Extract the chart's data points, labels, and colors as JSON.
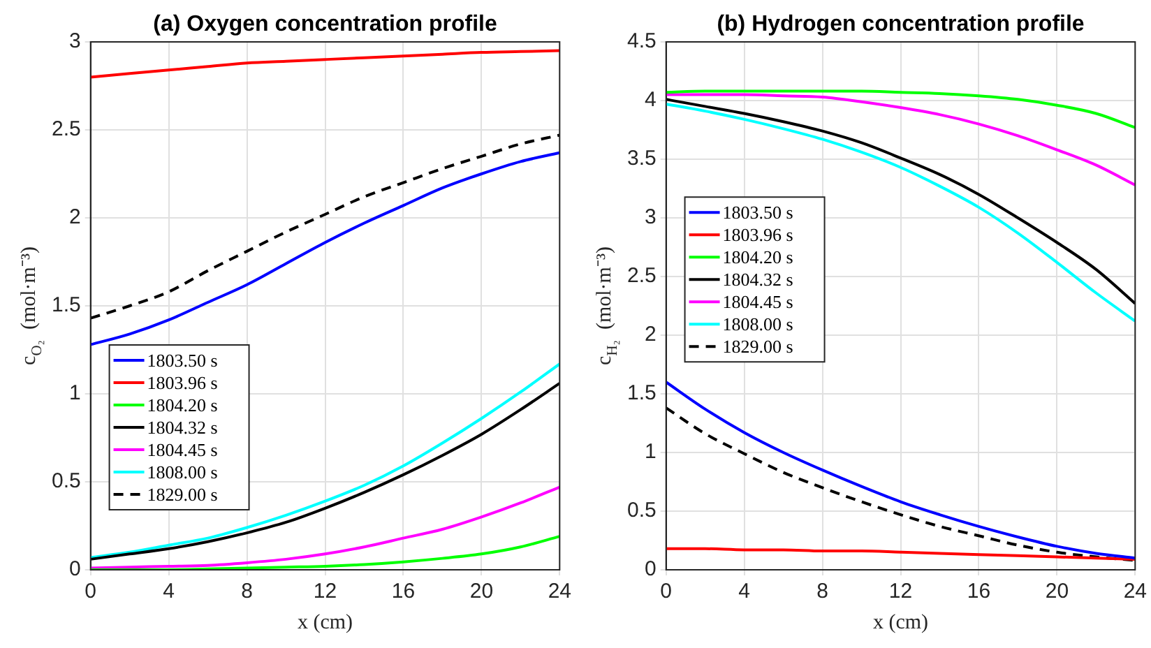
{
  "chart_data": [
    {
      "type": "line",
      "title": "(a) Oxygen concentration profile",
      "xlabel": "x (cm)",
      "ylabel": "c$_{O₂}$  (mol·m⁻³)",
      "x": [
        0,
        2,
        4,
        6,
        8,
        10,
        12,
        14,
        16,
        18,
        20,
        22,
        24
      ],
      "xlim": [
        0,
        24
      ],
      "xticks": [
        0,
        4,
        8,
        12,
        16,
        20,
        24
      ],
      "ylim": [
        0,
        3
      ],
      "yticks": [
        0,
        0.5,
        1,
        1.5,
        2,
        2.5,
        3
      ],
      "grid": true,
      "legend": "lower left",
      "marker": "none",
      "series": [
        {
          "name": "1803.50 s",
          "color": "#0000ff",
          "values": [
            1.28,
            1.34,
            1.42,
            1.52,
            1.62,
            1.74,
            1.86,
            1.97,
            2.07,
            2.17,
            2.25,
            2.32,
            2.37
          ]
        },
        {
          "name": "1803.96 s",
          "color": "#ff0000",
          "values": [
            2.8,
            2.82,
            2.84,
            2.86,
            2.88,
            2.89,
            2.9,
            2.91,
            2.92,
            2.93,
            2.94,
            2.945,
            2.95
          ]
        },
        {
          "name": "1804.20 s",
          "color": "#00ff00",
          "values": [
            0,
            0,
            0,
            0.005,
            0.01,
            0.015,
            0.02,
            0.03,
            0.045,
            0.065,
            0.09,
            0.13,
            0.19
          ]
        },
        {
          "name": "1804.32 s",
          "color": "#000000",
          "values": [
            0.06,
            0.09,
            0.12,
            0.16,
            0.21,
            0.27,
            0.35,
            0.44,
            0.54,
            0.65,
            0.77,
            0.91,
            1.06
          ]
        },
        {
          "name": "1804.45 s",
          "color": "#ff00ff",
          "values": [
            0.01,
            0.015,
            0.02,
            0.025,
            0.04,
            0.06,
            0.09,
            0.13,
            0.18,
            0.23,
            0.3,
            0.38,
            0.47
          ]
        },
        {
          "name": "1808.00 s",
          "color": "#00ffff",
          "values": [
            0.07,
            0.1,
            0.14,
            0.18,
            0.24,
            0.31,
            0.39,
            0.48,
            0.59,
            0.72,
            0.86,
            1.01,
            1.17
          ]
        },
        {
          "name": "1829.00 s",
          "color": "#000000",
          "line_style": "dashed",
          "values": [
            1.43,
            1.5,
            1.58,
            1.7,
            1.81,
            1.92,
            2.02,
            2.12,
            2.2,
            2.28,
            2.35,
            2.42,
            2.47
          ]
        }
      ]
    },
    {
      "type": "line",
      "title": "(b) Hydrogen concentration profile",
      "xlabel": "x (cm)",
      "ylabel": "c$_{H₂}$  (mol·m⁻³)",
      "x": [
        0,
        2,
        4,
        6,
        8,
        10,
        12,
        14,
        16,
        18,
        20,
        22,
        24
      ],
      "xlim": [
        0,
        24
      ],
      "xticks": [
        0,
        4,
        8,
        12,
        16,
        20,
        24
      ],
      "ylim": [
        0,
        4.5
      ],
      "yticks": [
        0,
        0.5,
        1,
        1.5,
        2,
        2.5,
        3,
        3.5,
        4,
        4.5
      ],
      "grid": true,
      "legend": "center left",
      "marker": "none",
      "series": [
        {
          "name": "1803.50 s",
          "color": "#0000ff",
          "values": [
            1.6,
            1.37,
            1.17,
            1.0,
            0.85,
            0.71,
            0.58,
            0.47,
            0.37,
            0.28,
            0.2,
            0.14,
            0.1
          ]
        },
        {
          "name": "1803.96 s",
          "color": "#ff0000",
          "values": [
            0.18,
            0.18,
            0.17,
            0.17,
            0.16,
            0.16,
            0.15,
            0.14,
            0.13,
            0.12,
            0.11,
            0.1,
            0.09
          ]
        },
        {
          "name": "1804.20 s",
          "color": "#00ff00",
          "values": [
            4.07,
            4.08,
            4.08,
            4.08,
            4.08,
            4.08,
            4.07,
            4.06,
            4.04,
            4.01,
            3.96,
            3.89,
            3.77
          ]
        },
        {
          "name": "1804.32 s",
          "color": "#000000",
          "values": [
            4.01,
            3.95,
            3.89,
            3.82,
            3.74,
            3.64,
            3.51,
            3.37,
            3.2,
            3.0,
            2.79,
            2.56,
            2.27
          ]
        },
        {
          "name": "1804.45 s",
          "color": "#ff00ff",
          "values": [
            4.05,
            4.05,
            4.05,
            4.04,
            4.03,
            3.99,
            3.94,
            3.88,
            3.8,
            3.7,
            3.58,
            3.45,
            3.28
          ]
        },
        {
          "name": "1808.00 s",
          "color": "#00ffff",
          "values": [
            3.97,
            3.91,
            3.84,
            3.76,
            3.67,
            3.56,
            3.43,
            3.27,
            3.09,
            2.87,
            2.62,
            2.36,
            2.12
          ]
        },
        {
          "name": "1829.00 s",
          "color": "#000000",
          "line_style": "dashed",
          "values": [
            1.38,
            1.16,
            0.99,
            0.83,
            0.7,
            0.58,
            0.47,
            0.37,
            0.29,
            0.21,
            0.15,
            0.11,
            0.08
          ]
        }
      ]
    }
  ]
}
